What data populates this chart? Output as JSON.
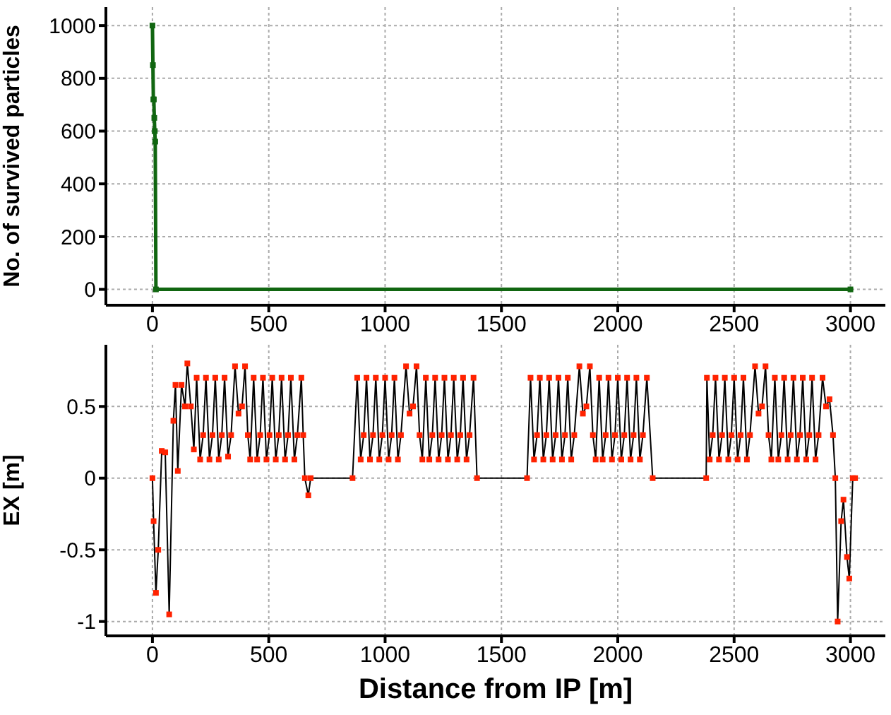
{
  "chart_data": [
    {
      "type": "line",
      "ylabel": "No. of survived particles",
      "xlim": [
        -200,
        3150
      ],
      "xticks": [
        0,
        500,
        1000,
        1500,
        2000,
        2500,
        3000
      ],
      "ylim": [
        -60,
        1070
      ],
      "yticks": [
        0,
        200,
        400,
        600,
        800,
        1000
      ],
      "grid": true,
      "marker": "square",
      "line_style": "solid",
      "series": [
        {
          "color": "#116611",
          "x": [
            0,
            2,
            4,
            6,
            8,
            10,
            12,
            15,
            3000
          ],
          "values": [
            1000,
            850,
            720,
            720,
            650,
            600,
            560,
            0,
            0
          ]
        }
      ]
    },
    {
      "type": "line",
      "xlabel": "Distance from IP [m]",
      "ylabel": "EX [m]",
      "xlim": [
        -200,
        3150
      ],
      "xticks": [
        0,
        500,
        1000,
        1500,
        2000,
        2500,
        3000
      ],
      "ylim": [
        -1.1,
        0.93
      ],
      "yticks": [
        -1,
        -0.5,
        0,
        0.5
      ],
      "grid": true,
      "marker": "square",
      "line_style": "solid",
      "series": [
        {
          "color": "#ff2200",
          "x": [
            0,
            5,
            15,
            25,
            40,
            55,
            72,
            90,
            99,
            109,
            125,
            140,
            150,
            165,
            178,
            190,
            205,
            218,
            230,
            245,
            258,
            270,
            285,
            298,
            310,
            325,
            338,
            355,
            370,
            385,
            398,
            410,
            420,
            435,
            450,
            463,
            475,
            490,
            503,
            515,
            530,
            543,
            555,
            570,
            583,
            595,
            610,
            623,
            640,
            648,
            655,
            670,
            680,
            860,
            880,
            895,
            908,
            920,
            935,
            948,
            960,
            975,
            988,
            1000,
            1015,
            1028,
            1040,
            1055,
            1068,
            1090,
            1105,
            1120,
            1135,
            1148,
            1160,
            1175,
            1190,
            1203,
            1215,
            1230,
            1243,
            1255,
            1270,
            1283,
            1295,
            1310,
            1323,
            1335,
            1350,
            1363,
            1380,
            1395,
            1610,
            1625,
            1640,
            1653,
            1665,
            1680,
            1693,
            1705,
            1720,
            1733,
            1745,
            1760,
            1773,
            1785,
            1800,
            1813,
            1835,
            1850,
            1865,
            1880,
            1893,
            1905,
            1920,
            1935,
            1948,
            1960,
            1975,
            1988,
            2000,
            2015,
            2028,
            2040,
            2055,
            2068,
            2080,
            2095,
            2108,
            2125,
            2150,
            2380,
            2383,
            2395,
            2408,
            2420,
            2435,
            2448,
            2460,
            2475,
            2488,
            2500,
            2515,
            2528,
            2540,
            2555,
            2568,
            2590,
            2605,
            2620,
            2635,
            2648,
            2660,
            2675,
            2690,
            2703,
            2715,
            2730,
            2743,
            2755,
            2770,
            2783,
            2795,
            2810,
            2823,
            2835,
            2850,
            2863,
            2880,
            2895,
            2910,
            2925,
            2935,
            2945,
            2960,
            2970,
            2985,
            2995,
            3010,
            3020
          ],
          "values": [
            0,
            -0.3,
            -0.8,
            -0.5,
            0.19,
            0.18,
            -0.95,
            0.4,
            0.65,
            0.05,
            0.65,
            0.5,
            0.8,
            0.5,
            0.2,
            0.7,
            0.13,
            0.3,
            0.7,
            0.13,
            0.3,
            0.7,
            0.13,
            0.3,
            0.7,
            0.15,
            0.3,
            0.78,
            0.45,
            0.5,
            0.78,
            0.3,
            0.13,
            0.7,
            0.13,
            0.3,
            0.7,
            0.13,
            0.3,
            0.7,
            0.13,
            0.3,
            0.7,
            0.13,
            0.3,
            0.7,
            0.13,
            0.3,
            0.7,
            0.3,
            0,
            -0.12,
            0,
            0,
            0.7,
            0.13,
            0.3,
            0.7,
            0.13,
            0.3,
            0.7,
            0.13,
            0.3,
            0.7,
            0.13,
            0.3,
            0.7,
            0.13,
            0.3,
            0.78,
            0.45,
            0.5,
            0.78,
            0.3,
            0.13,
            0.7,
            0.13,
            0.3,
            0.7,
            0.13,
            0.3,
            0.7,
            0.13,
            0.3,
            0.7,
            0.13,
            0.3,
            0.7,
            0.13,
            0.3,
            0.7,
            0,
            0,
            0.7,
            0.13,
            0.3,
            0.7,
            0.13,
            0.3,
            0.7,
            0.13,
            0.3,
            0.7,
            0.13,
            0.3,
            0.7,
            0.13,
            0.3,
            0.78,
            0.45,
            0.5,
            0.78,
            0.3,
            0.13,
            0.7,
            0.13,
            0.3,
            0.7,
            0.13,
            0.3,
            0.7,
            0.13,
            0.3,
            0.7,
            0.13,
            0.3,
            0.7,
            0.13,
            0.3,
            0.7,
            0,
            0,
            0.7,
            0.13,
            0.3,
            0.7,
            0.13,
            0.3,
            0.7,
            0.13,
            0.3,
            0.7,
            0.13,
            0.3,
            0.7,
            0.13,
            0.3,
            0.78,
            0.45,
            0.5,
            0.78,
            0.3,
            0.13,
            0.7,
            0.13,
            0.3,
            0.7,
            0.13,
            0.3,
            0.7,
            0.13,
            0.3,
            0.7,
            0.13,
            0.3,
            0.7,
            0.13,
            0.3,
            0.7,
            0.5,
            0.55,
            0.3,
            0,
            -1,
            -0.3,
            -0.15,
            -0.55,
            -0.7,
            0,
            0
          ]
        }
      ]
    }
  ]
}
